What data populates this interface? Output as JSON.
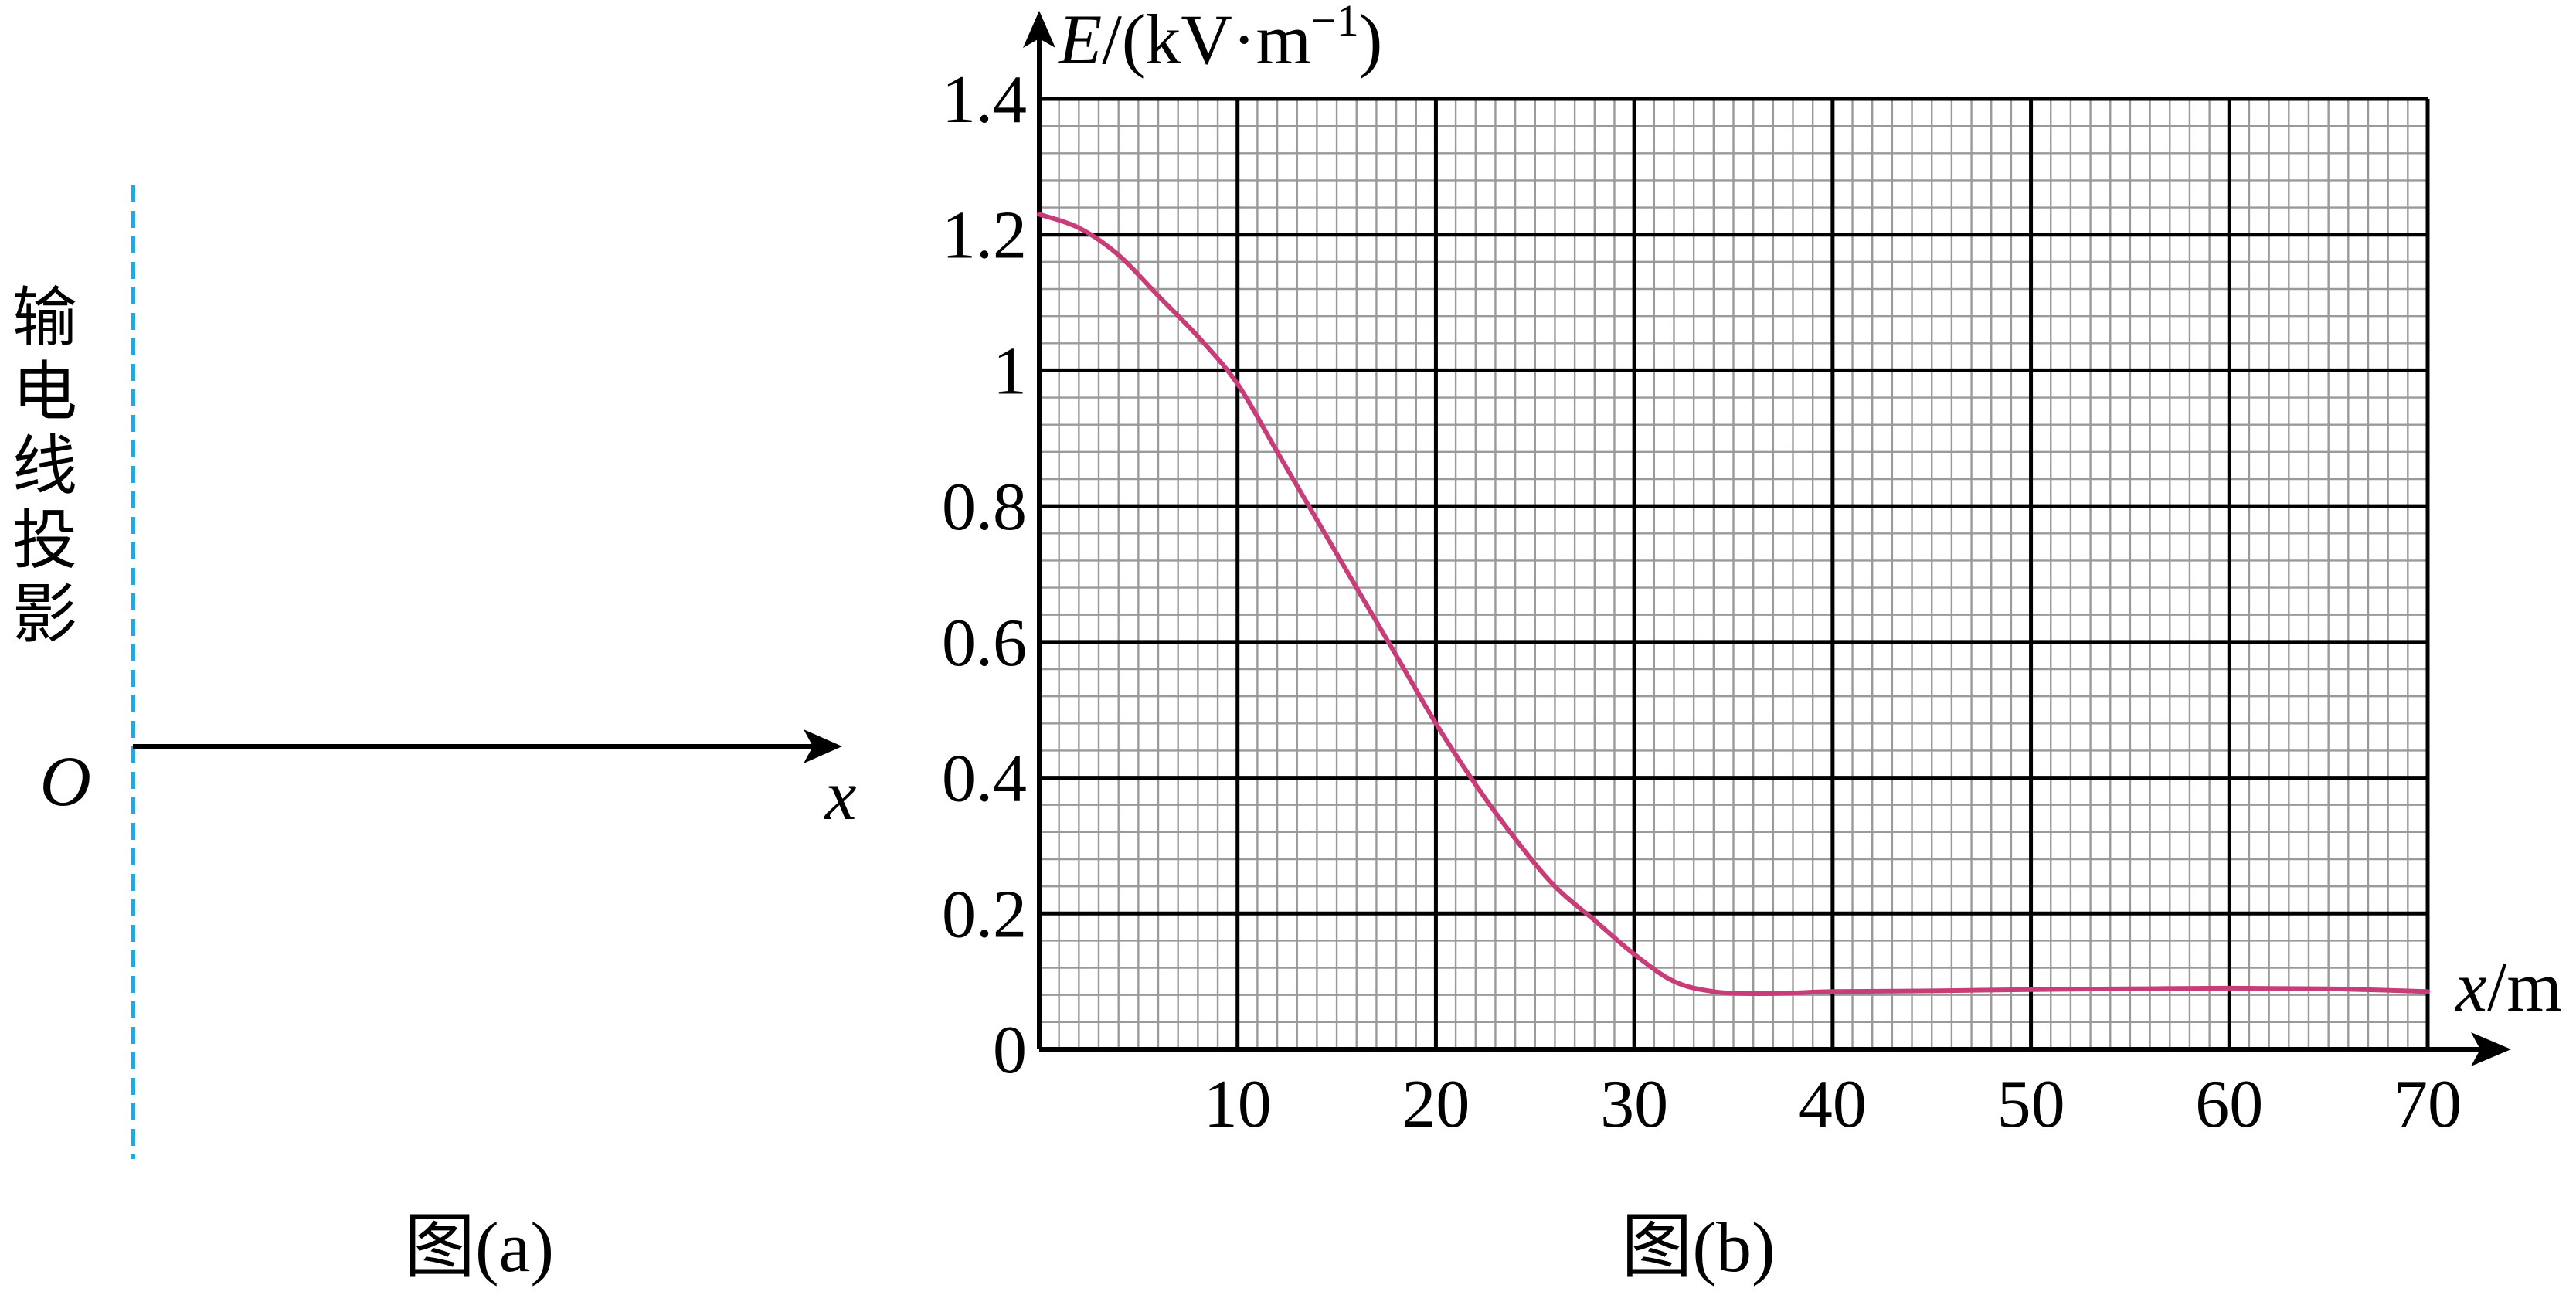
{
  "figure_a": {
    "vertical_label": "输电线投影",
    "origin_label": "O",
    "axis_label": "x",
    "caption": "图(a)",
    "colors": {
      "dashed_line": "#2aa6dc",
      "axis": "#000000"
    }
  },
  "figure_b": {
    "caption": "图(b)",
    "y_axis_label": {
      "var": "E",
      "unit_open": "/(kV·m",
      "exp": "−1",
      "close": ")"
    },
    "x_axis_label": {
      "var": "x",
      "unit": "/m"
    },
    "colors": {
      "curve": "#c83c78",
      "major_grid": "#000000",
      "minor_grid": "#9a9a9a"
    }
  },
  "chart_data": {
    "type": "line",
    "title": "",
    "xlabel": "x/m",
    "ylabel": "E/(kV·m⁻¹)",
    "xlim": [
      0,
      70
    ],
    "ylim": [
      0,
      1.4
    ],
    "x_ticks": [
      "10",
      "20",
      "30",
      "40",
      "50",
      "60",
      "70"
    ],
    "y_ticks": [
      "0",
      "0.2",
      "0.4",
      "0.6",
      "0.8",
      "1",
      "1.2",
      "1.4"
    ],
    "grid": true,
    "major_grid_x": 10,
    "major_grid_y": 0.2,
    "minor_grid_x": 1,
    "minor_grid_y": 0.04,
    "series": [
      {
        "x": [
          0,
          2,
          4,
          6,
          8,
          10,
          12,
          14,
          16,
          18,
          20,
          22,
          24,
          26,
          28,
          30,
          32,
          34,
          36,
          38,
          40,
          45,
          50,
          55,
          60,
          65,
          70
        ],
        "values": [
          1.23,
          1.21,
          1.17,
          1.11,
          1.05,
          0.98,
          0.88,
          0.78,
          0.68,
          0.58,
          0.48,
          0.39,
          0.31,
          0.24,
          0.19,
          0.14,
          0.1,
          0.085,
          0.082,
          0.083,
          0.085,
          0.086,
          0.088,
          0.089,
          0.09,
          0.089,
          0.085
        ]
      }
    ]
  }
}
